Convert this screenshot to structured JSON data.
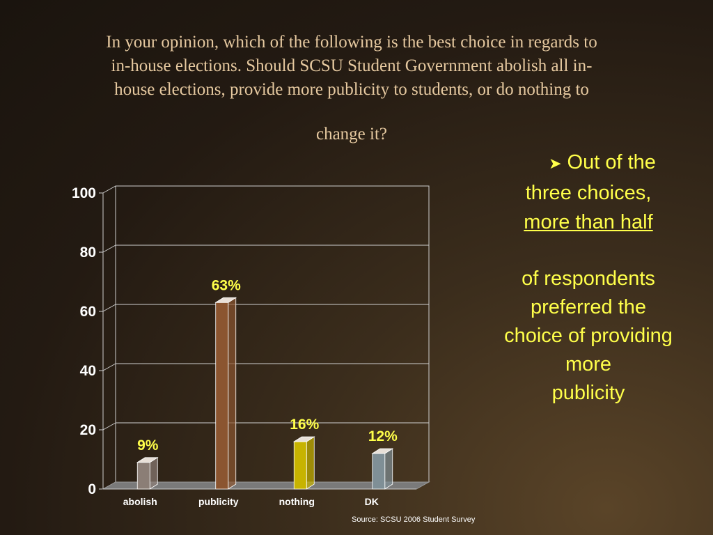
{
  "title": {
    "lines": [
      "In your opinion, which of the following is the best choice in regards to",
      "in-house elections.  Should SCSU Student Government abolish all in-",
      "house elections, provide more publicity to students, or do nothing to",
      "change it?"
    ]
  },
  "chart_data": {
    "type": "bar",
    "categories": [
      "abolish",
      "publicity",
      "nothing",
      "DK"
    ],
    "values": [
      9,
      63,
      16,
      12
    ],
    "data_labels": [
      "9%",
      "63%",
      "16%",
      "12%"
    ],
    "bar_colors": [
      "#8b7e76",
      "#8b5530",
      "#c7b300",
      "#7f8f96"
    ],
    "ylim": [
      0,
      100
    ],
    "yticks": [
      0,
      20,
      40,
      60,
      80,
      100
    ],
    "grid": true,
    "title": "",
    "xlabel": "",
    "ylabel": ""
  },
  "bullet": {
    "icon": "arrow-bullet-icon",
    "lines": [
      "Out of the",
      "three choices,",
      "more than half",
      "of respondents",
      "preferred the",
      "choice of providing",
      "more",
      "publicity"
    ]
  },
  "source": "Source: SCSU 2006 Student Survey",
  "colors": {
    "title_text": "#e6c9a0",
    "bullet_text": "#ffff4a",
    "data_label": "#ffff4a"
  }
}
